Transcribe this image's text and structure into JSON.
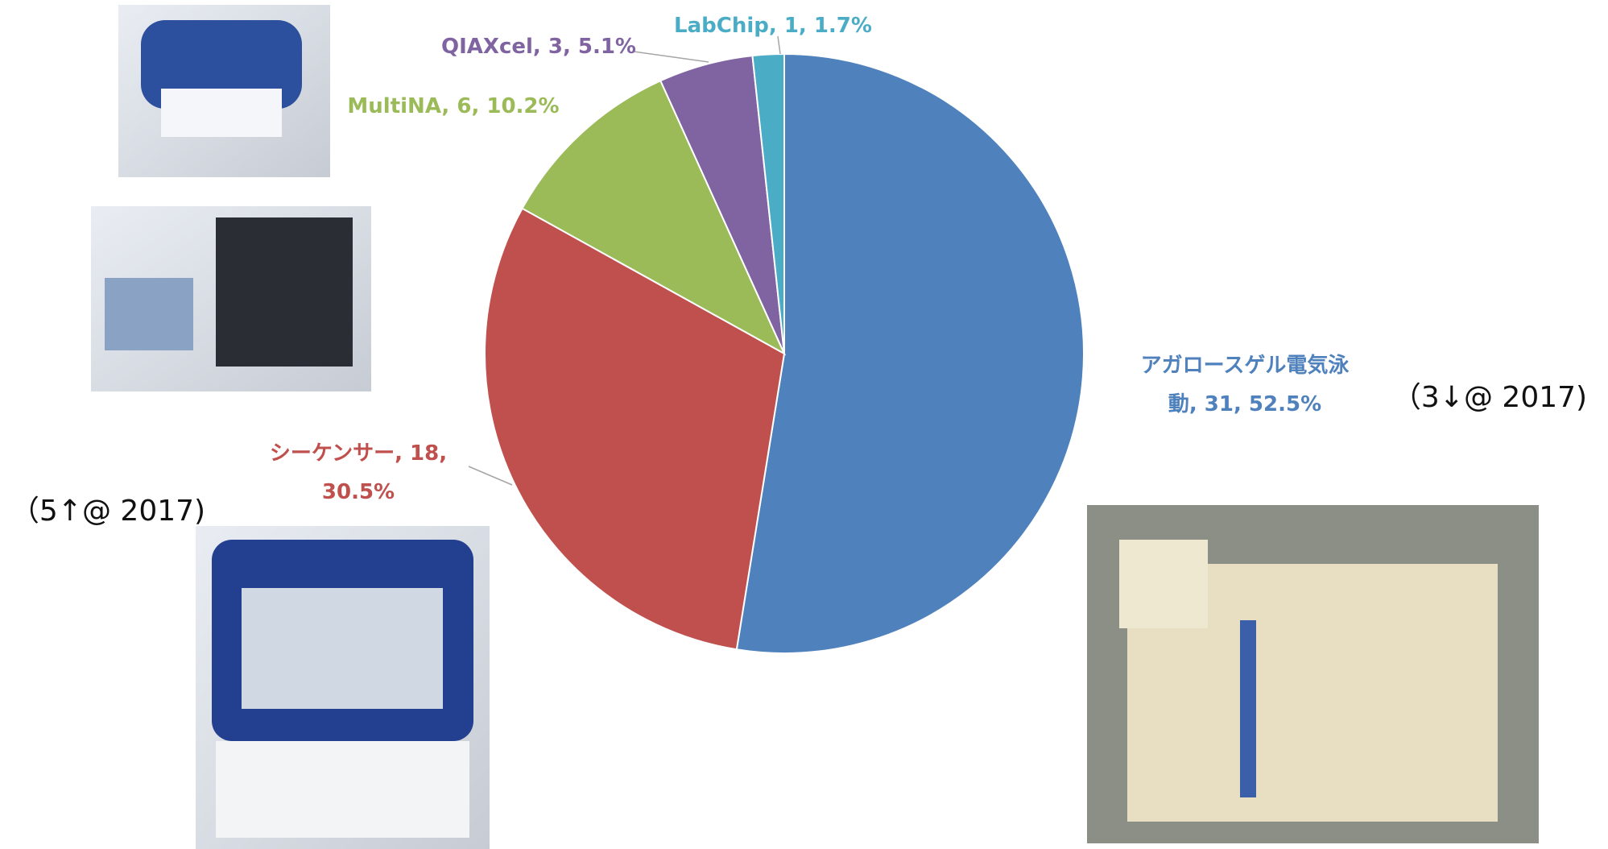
{
  "chart_data": {
    "type": "pie",
    "values": [
      31,
      18,
      6,
      3,
      1
    ],
    "value_labels": [
      "アガロースゲル電気泳動, 31, 52.5%",
      "シーケンサー, 18, 30.5%",
      "MultiNA, 6, 10.2%",
      "QIAXcel, 3, 5.1%",
      "LabChip, 1, 1.7%"
    ],
    "colors": [
      "#4f81bd",
      "#c0504d",
      "#9bbb59",
      "#8064a2",
      "#4bacc6"
    ],
    "annotations": [
      "（3↓@ 2017)",
      "（5↑@ 2017)"
    ]
  }
}
